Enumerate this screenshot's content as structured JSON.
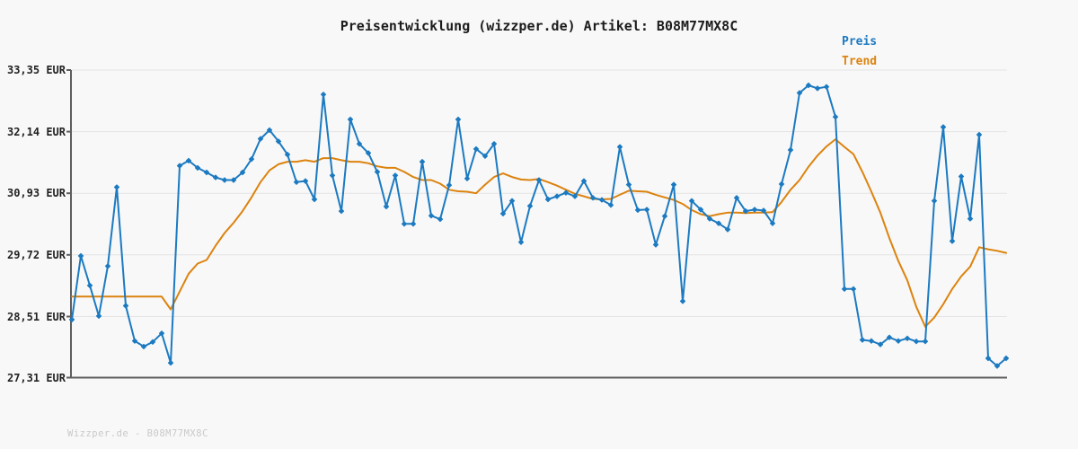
{
  "title": "Preisentwicklung (wizzper.de) Artikel: B08M77MX8C",
  "footer": {
    "text": "Wizzper.de - B08M77MX8C"
  },
  "colors": {
    "background": "#f8f8f8",
    "price_line": "#1c7ac1",
    "trend_line": "#dc830e",
    "gridline": "#e4e4e4",
    "axis_spine": "#5e5e5e",
    "title_text": "#1c1c1c",
    "tick_label_text": "#222222",
    "watermark_text": "#c9c9c9"
  },
  "chart_data": {
    "type": "line",
    "title": "Preisentwicklung (wizzper.de) Artikel: B08M77MX8C",
    "currency": "EUR",
    "xlabel": "",
    "ylabel": "",
    "x_tick_labels": "none",
    "grid": "horizontal-only",
    "legend_position": "top-right",
    "ylim": [
      27.31,
      33.35
    ],
    "y_ticks": [
      "33,35 EUR",
      "32,14 EUR",
      "30,93 EUR",
      "29,72 EUR",
      "28,51 EUR",
      "27,31 EUR"
    ],
    "y_tick_values": [
      33.35,
      32.14,
      30.93,
      29.72,
      28.51,
      27.31
    ],
    "legend": [
      {
        "name": "Preis",
        "color": "#1c7ac1"
      },
      {
        "name": "Trend",
        "color": "#dc830e"
      }
    ],
    "series": [
      {
        "name": "Preis",
        "color": "#1c7ac1",
        "marker": "diamond",
        "values": [
          28.45,
          29.7,
          29.12,
          28.52,
          29.5,
          31.05,
          28.72,
          28.03,
          27.92,
          28.01,
          28.18,
          27.6,
          31.47,
          31.57,
          31.43,
          31.34,
          31.24,
          31.19,
          31.19,
          31.34,
          31.6,
          32.0,
          32.17,
          31.95,
          31.69,
          31.15,
          31.17,
          30.81,
          32.87,
          31.28,
          30.58,
          32.38,
          31.9,
          31.72,
          31.35,
          30.67,
          31.28,
          30.33,
          30.33,
          31.55,
          30.49,
          30.42,
          31.09,
          32.38,
          31.22,
          31.8,
          31.66,
          31.9,
          30.53,
          30.78,
          29.97,
          30.68,
          31.19,
          30.81,
          30.87,
          30.94,
          30.87,
          31.17,
          30.84,
          30.8,
          30.7,
          31.84,
          31.1,
          30.6,
          30.61,
          29.92,
          30.48,
          31.1,
          28.81,
          30.78,
          30.61,
          30.43,
          30.34,
          30.22,
          30.84,
          30.58,
          30.61,
          30.59,
          30.34,
          31.11,
          31.78,
          32.9,
          33.05,
          32.99,
          33.02,
          32.43,
          29.05,
          29.05,
          28.05,
          28.03,
          27.96,
          28.1,
          28.03,
          28.08,
          28.02,
          28.02,
          30.78,
          32.23,
          29.99,
          31.26,
          30.43,
          32.08,
          27.69,
          27.54,
          27.69
        ]
      },
      {
        "name": "Trend",
        "color": "#dc830e",
        "marker": "none",
        "values": [
          28.9,
          28.9,
          28.9,
          28.9,
          28.9,
          28.9,
          28.9,
          28.9,
          28.9,
          28.9,
          28.9,
          28.65,
          29.0,
          29.35,
          29.55,
          29.62,
          29.9,
          30.15,
          30.35,
          30.58,
          30.85,
          31.15,
          31.38,
          31.5,
          31.55,
          31.55,
          31.58,
          31.55,
          31.62,
          31.62,
          31.58,
          31.55,
          31.55,
          31.52,
          31.46,
          31.43,
          31.43,
          31.35,
          31.25,
          31.19,
          31.19,
          31.12,
          31.0,
          30.97,
          30.96,
          30.93,
          31.1,
          31.25,
          31.32,
          31.25,
          31.2,
          31.19,
          31.21,
          31.15,
          31.08,
          31.0,
          30.92,
          30.87,
          30.82,
          30.81,
          30.82,
          30.9,
          30.98,
          30.97,
          30.96,
          30.9,
          30.85,
          30.8,
          30.72,
          30.6,
          30.52,
          30.48,
          30.52,
          30.55,
          30.55,
          30.54,
          30.55,
          30.55,
          30.56,
          30.76,
          31.0,
          31.19,
          31.45,
          31.67,
          31.85,
          31.99,
          31.84,
          31.7,
          31.35,
          30.96,
          30.55,
          30.05,
          29.6,
          29.22,
          28.7,
          28.31,
          28.49,
          28.75,
          29.05,
          29.3,
          29.49,
          29.87,
          29.83,
          29.8,
          29.76
        ]
      }
    ]
  }
}
